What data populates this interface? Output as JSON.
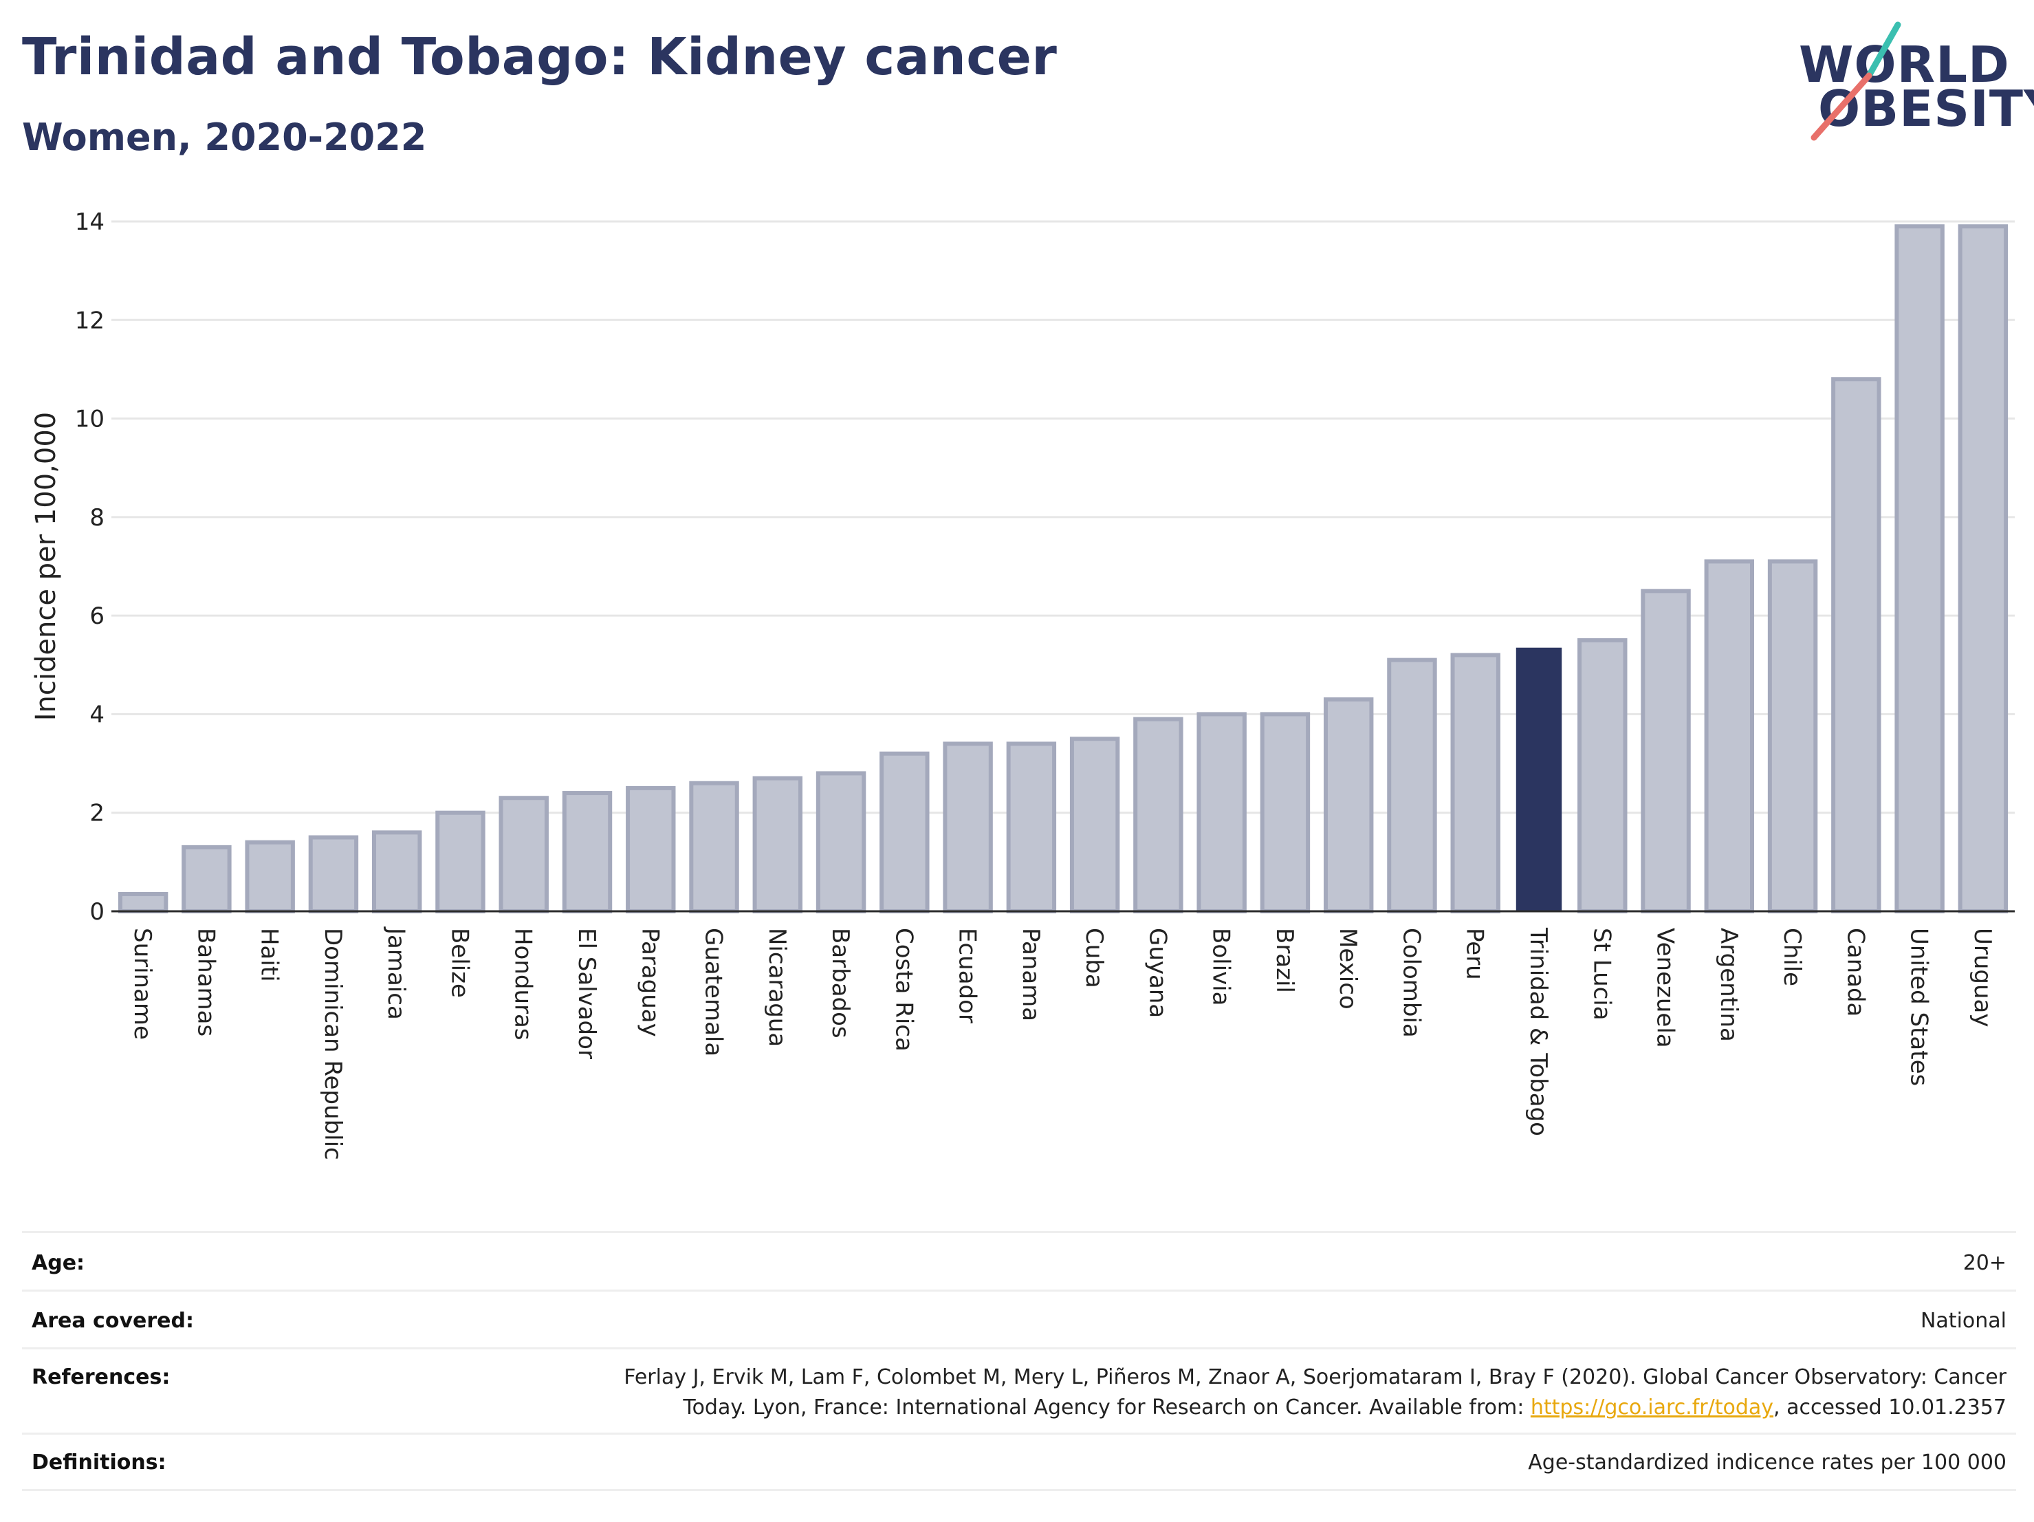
{
  "header": {
    "title": "Trinidad and Tobago: Kidney cancer",
    "subtitle": "Women, 2020-2022"
  },
  "logo": {
    "line1": "WORLD",
    "line2": "OBESITY",
    "colors": {
      "text": "#2b3560",
      "slash_top": "#3bbfb0",
      "slash_bottom": "#e8706a"
    }
  },
  "chart_data": {
    "type": "bar",
    "ylabel": "Incidence per 100,000",
    "ylim": [
      0,
      14
    ],
    "yticks": [
      0,
      2,
      4,
      6,
      8,
      10,
      12,
      14
    ],
    "grid": true,
    "highlight": "Trinidad & Tobago",
    "colors": {
      "bar": "#c0c4d1",
      "bar_edge": "#a4a9bc",
      "highlight": "#2b3560"
    },
    "categories": [
      "Suriname",
      "Bahamas",
      "Haiti",
      "Dominican Republic",
      "Jamaica",
      "Belize",
      "Honduras",
      "El Salvador",
      "Paraguay",
      "Guatemala",
      "Nicaragua",
      "Barbados",
      "Costa Rica",
      "Ecuador",
      "Panama",
      "Cuba",
      "Guyana",
      "Bolivia",
      "Brazil",
      "Mexico",
      "Colombia",
      "Peru",
      "Trinidad & Tobago",
      "St Lucia",
      "Venezuela",
      "Argentina",
      "Chile",
      "Canada",
      "United States",
      "Uruguay"
    ],
    "values": [
      0.35,
      1.3,
      1.4,
      1.5,
      1.6,
      2.0,
      2.3,
      2.4,
      2.5,
      2.6,
      2.7,
      2.8,
      3.2,
      3.4,
      3.4,
      3.5,
      3.9,
      4.0,
      4.0,
      4.3,
      5.1,
      5.2,
      5.35,
      5.5,
      6.5,
      7.1,
      7.1,
      10.8,
      13.9,
      13.9
    ]
  },
  "info": {
    "age_label": "Age:",
    "age_value": "20+",
    "area_label": "Area covered:",
    "area_value": "National",
    "references_label": "References:",
    "references_line1": "Ferlay J, Ervik M, Lam F, Colombet M, Mery L, Piñeros M, Znaor A, Soerjomataram I, Bray F (2020). Global Cancer Observatory: Cancer",
    "references_line2_prefix": "Today. Lyon, France: International Agency for Research on Cancer. Available from: ",
    "references_link": "https://gco.iarc.fr/today",
    "references_line2_suffix": ", accessed 10.01.2357",
    "definitions_label": "Definitions:",
    "definitions_value": "Age-standardized indicence rates per 100 000"
  }
}
